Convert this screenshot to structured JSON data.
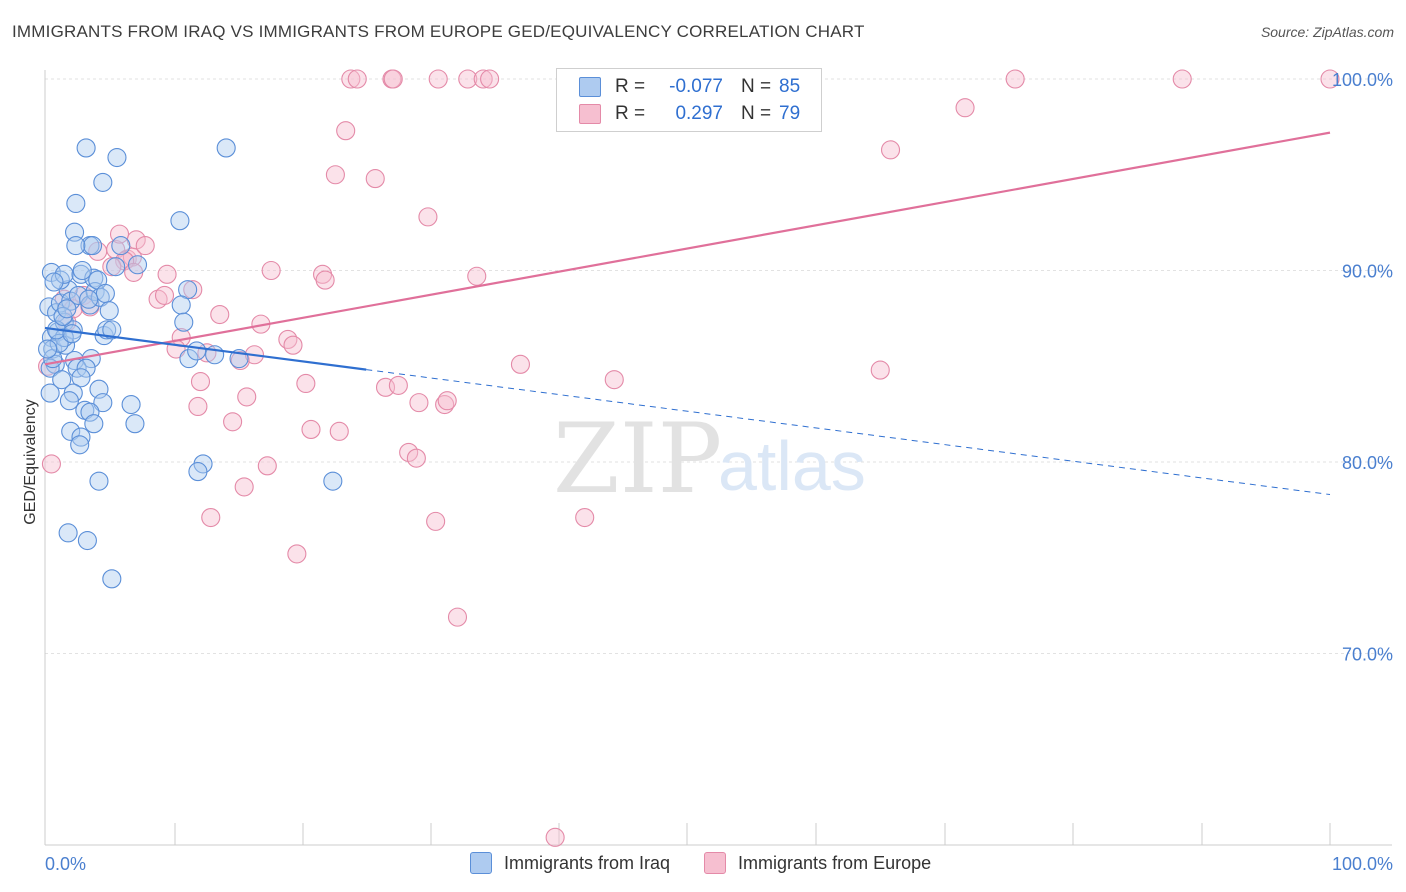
{
  "title": "IMMIGRANTS FROM IRAQ VS IMMIGRANTS FROM EUROPE GED/EQUIVALENCY CORRELATION CHART",
  "source": "Source: ZipAtlas.com",
  "legend": {
    "r_label": "R =",
    "n_label": "N =",
    "rows": [
      {
        "r": "-0.077",
        "n": "85"
      },
      {
        "r": "0.297",
        "n": "79"
      }
    ]
  },
  "colors": {
    "iraq_fill": "#aecbf0",
    "iraq_stroke": "#5b8fd8",
    "iraq_line": "#2f6fd0",
    "europe_fill": "#f6bfd0",
    "europe_stroke": "#e48aa8",
    "europe_line": "#e0709a",
    "axis_label": "#4a7fcf",
    "grid": "#e2e2e2"
  },
  "chart_data": {
    "type": "scatter",
    "title": "IMMIGRANTS FROM IRAQ VS IMMIGRANTS FROM EUROPE GED/EQUIVALENCY CORRELATION CHART",
    "xlabel": "",
    "ylabel": "GED/Equivalency",
    "xlim": [
      0,
      100
    ],
    "ylim": [
      60.5,
      101.5
    ],
    "x_tick_labels": [
      "0.0%",
      "100.0%"
    ],
    "y_ticks": [
      70,
      80,
      90,
      100
    ],
    "y_tick_labels": [
      "70.0%",
      "80.0%",
      "90.0%",
      "100.0%"
    ],
    "watermark": {
      "zip": "ZIP",
      "atlas": "atlas"
    },
    "series": [
      {
        "name": "Immigrants from Iraq",
        "R": -0.077,
        "N": 85,
        "trend": {
          "x0": 0,
          "y0": 87.0,
          "x1": 100,
          "y1": 78.3,
          "solid_until": 25
        },
        "points": [
          [
            0.3,
            88.1
          ],
          [
            0.5,
            86.5
          ],
          [
            0.6,
            85.9
          ],
          [
            0.8,
            85.1
          ],
          [
            0.4,
            84.9
          ],
          [
            0.9,
            87.8
          ],
          [
            1.0,
            86.8
          ],
          [
            1.2,
            88.3
          ],
          [
            1.5,
            87.3
          ],
          [
            1.6,
            86.1
          ],
          [
            1.8,
            89.0
          ],
          [
            2.0,
            88.4
          ],
          [
            2.2,
            86.9
          ],
          [
            2.3,
            85.3
          ],
          [
            0.5,
            89.9
          ],
          [
            1.2,
            89.5
          ],
          [
            1.5,
            89.8
          ],
          [
            2.8,
            89.8
          ],
          [
            2.6,
            88.7
          ],
          [
            3.5,
            88.2
          ],
          [
            3.8,
            89.6
          ],
          [
            3.9,
            88.9
          ],
          [
            4.1,
            89.5
          ],
          [
            4.3,
            88.6
          ],
          [
            4.6,
            86.6
          ],
          [
            4.8,
            86.9
          ],
          [
            4.7,
            88.8
          ],
          [
            5.0,
            87.9
          ],
          [
            5.5,
            90.2
          ],
          [
            5.2,
            86.9
          ],
          [
            3.6,
            85.4
          ],
          [
            2.5,
            84.9
          ],
          [
            3.2,
            84.9
          ],
          [
            2.8,
            84.4
          ],
          [
            1.5,
            86.5
          ],
          [
            2.2,
            83.6
          ],
          [
            1.9,
            83.2
          ],
          [
            3.1,
            82.7
          ],
          [
            4.2,
            83.8
          ],
          [
            4.5,
            83.1
          ],
          [
            3.5,
            82.6
          ],
          [
            3.8,
            82.0
          ],
          [
            2.0,
            81.6
          ],
          [
            2.8,
            81.3
          ],
          [
            2.7,
            80.9
          ],
          [
            6.7,
            83.0
          ],
          [
            7.0,
            82.0
          ],
          [
            4.2,
            79.0
          ],
          [
            1.8,
            76.3
          ],
          [
            3.3,
            75.9
          ],
          [
            5.2,
            73.9
          ],
          [
            2.3,
            92.0
          ],
          [
            2.4,
            93.5
          ],
          [
            3.5,
            91.3
          ],
          [
            3.2,
            96.4
          ],
          [
            4.5,
            94.6
          ],
          [
            5.6,
            95.9
          ],
          [
            3.7,
            91.3
          ],
          [
            2.4,
            91.3
          ],
          [
            5.9,
            91.3
          ],
          [
            7.2,
            90.3
          ],
          [
            10.5,
            92.6
          ],
          [
            14.1,
            96.4
          ],
          [
            11.1,
            89.0
          ],
          [
            10.6,
            88.2
          ],
          [
            10.8,
            87.3
          ],
          [
            11.2,
            85.4
          ],
          [
            13.2,
            85.6
          ],
          [
            15.1,
            85.4
          ],
          [
            11.8,
            85.8
          ],
          [
            12.3,
            79.9
          ],
          [
            11.9,
            79.5
          ],
          [
            22.4,
            79.0
          ],
          [
            0.6,
            85.4
          ],
          [
            1.1,
            86.2
          ],
          [
            0.9,
            86.9
          ],
          [
            1.4,
            87.6
          ],
          [
            2.1,
            86.7
          ],
          [
            1.7,
            88.0
          ],
          [
            0.4,
            83.6
          ],
          [
            0.7,
            89.4
          ],
          [
            2.9,
            90.0
          ],
          [
            3.4,
            88.5
          ],
          [
            1.3,
            84.3
          ],
          [
            0.2,
            85.9
          ]
        ]
      },
      {
        "name": "Immigrants from Europe",
        "R": 0.297,
        "N": 79,
        "trend": {
          "x0": 0,
          "y0": 85.1,
          "x1": 100,
          "y1": 97.2
        },
        "points": [
          [
            0.2,
            85.0
          ],
          [
            0.5,
            79.9
          ],
          [
            1.5,
            88.5
          ],
          [
            1.7,
            87.3
          ],
          [
            2.2,
            88.0
          ],
          [
            3.0,
            88.7
          ],
          [
            3.5,
            88.1
          ],
          [
            4.1,
            91.0
          ],
          [
            5.5,
            91.1
          ],
          [
            5.8,
            91.9
          ],
          [
            6.4,
            90.6
          ],
          [
            6.8,
            90.7
          ],
          [
            7.1,
            91.6
          ],
          [
            7.8,
            91.3
          ],
          [
            6.2,
            90.5
          ],
          [
            5.2,
            90.2
          ],
          [
            6.9,
            89.9
          ],
          [
            9.5,
            89.8
          ],
          [
            11.5,
            89.0
          ],
          [
            8.8,
            88.5
          ],
          [
            9.3,
            88.7
          ],
          [
            10.6,
            86.5
          ],
          [
            10.2,
            85.9
          ],
          [
            12.1,
            84.2
          ],
          [
            11.9,
            82.9
          ],
          [
            13.6,
            87.7
          ],
          [
            12.6,
            85.7
          ],
          [
            12.9,
            77.1
          ],
          [
            14.6,
            82.1
          ],
          [
            15.5,
            78.7
          ],
          [
            15.7,
            83.4
          ],
          [
            15.2,
            85.3
          ],
          [
            16.3,
            85.6
          ],
          [
            16.8,
            87.2
          ],
          [
            17.3,
            79.8
          ],
          [
            17.6,
            90.0
          ],
          [
            18.9,
            86.4
          ],
          [
            19.3,
            86.1
          ],
          [
            19.6,
            75.2
          ],
          [
            20.3,
            84.1
          ],
          [
            20.7,
            81.7
          ],
          [
            21.6,
            89.8
          ],
          [
            21.8,
            89.5
          ],
          [
            22.6,
            95.0
          ],
          [
            22.9,
            81.6
          ],
          [
            23.4,
            97.3
          ],
          [
            23.8,
            100.0
          ],
          [
            24.3,
            100.0
          ],
          [
            25.7,
            94.8
          ],
          [
            26.5,
            83.9
          ],
          [
            27.0,
            100.0
          ],
          [
            27.1,
            100.0
          ],
          [
            27.5,
            84.0
          ],
          [
            28.3,
            80.5
          ],
          [
            28.9,
            80.2
          ],
          [
            29.1,
            83.1
          ],
          [
            29.8,
            92.8
          ],
          [
            30.4,
            76.9
          ],
          [
            30.6,
            100.0
          ],
          [
            31.1,
            83.0
          ],
          [
            31.3,
            83.2
          ],
          [
            32.1,
            71.9
          ],
          [
            32.9,
            100.0
          ],
          [
            33.6,
            89.7
          ],
          [
            34.1,
            100.0
          ],
          [
            34.6,
            100.0
          ],
          [
            37.0,
            85.1
          ],
          [
            39.7,
            60.4
          ],
          [
            42.0,
            77.1
          ],
          [
            44.3,
            84.3
          ],
          [
            48.2,
            100.0
          ],
          [
            51.1,
            100.0
          ],
          [
            56.5,
            100.0
          ],
          [
            65.8,
            96.3
          ],
          [
            65.0,
            84.8
          ],
          [
            71.6,
            98.5
          ],
          [
            75.5,
            100.0
          ],
          [
            88.5,
            100.0
          ],
          [
            100.0,
            100.0
          ]
        ]
      }
    ]
  },
  "bottom_legend": [
    "Immigrants from Iraq",
    "Immigrants from Europe"
  ]
}
